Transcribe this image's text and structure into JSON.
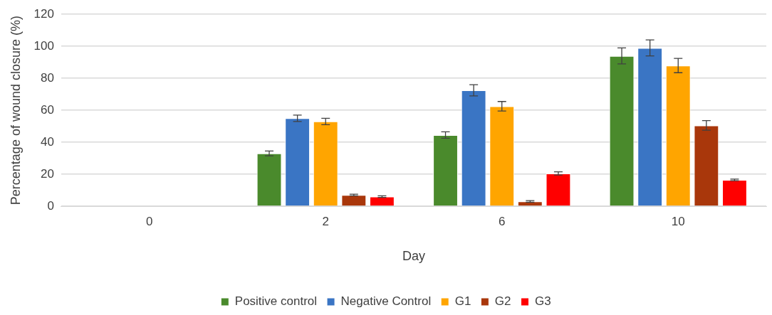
{
  "chart_data": {
    "type": "bar",
    "xlabel": "Day",
    "ylabel": "Percentage of wound closure (%)",
    "categories": [
      "0",
      "2",
      "6",
      "10"
    ],
    "series": [
      {
        "name": "Positive control",
        "color": "#4a8a2c",
        "values": [
          0,
          33,
          44.5,
          94
        ],
        "errors": [
          null,
          1.5,
          2,
          5
        ]
      },
      {
        "name": "Negative Control",
        "color": "#3a75c4",
        "values": [
          0,
          55,
          72.5,
          99
        ],
        "errors": [
          null,
          2,
          3.5,
          5
        ]
      },
      {
        "name": "G1",
        "color": "#ffa500",
        "values": [
          0,
          53,
          62.5,
          88
        ],
        "errors": [
          null,
          2,
          3,
          4.5
        ]
      },
      {
        "name": "G2",
        "color": "#a9370b",
        "values": [
          0,
          7,
          3,
          50.5
        ],
        "errors": [
          null,
          0.5,
          0.5,
          3
        ]
      },
      {
        "name": "G3",
        "color": "#ff0000",
        "values": [
          0,
          6,
          20.5,
          16.5
        ],
        "errors": [
          null,
          0.5,
          1,
          0.5
        ]
      }
    ],
    "ylim": [
      0,
      120
    ],
    "yticks": [
      0,
      20,
      40,
      60,
      80,
      100,
      120
    ],
    "grid": "y",
    "legend": "bottom"
  }
}
